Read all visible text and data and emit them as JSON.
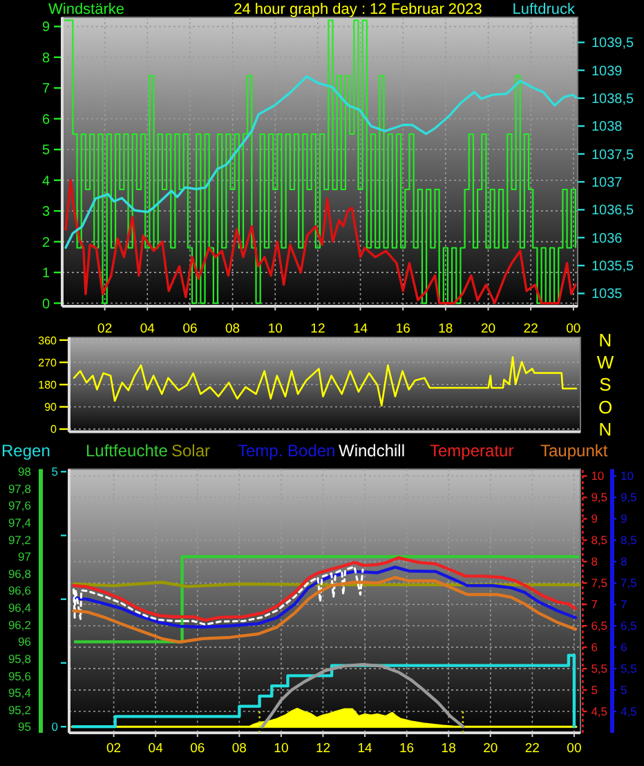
{
  "chart_data": [
    {
      "type": "line",
      "title": "24 hour graph day : 12 Februar 2023",
      "ylabel": "Windstärke",
      "y2label": "Luftdruck",
      "xlim": [
        "2023-02-12T00:00",
        "2023-02-13T00:12"
      ],
      "xticks": [
        {
          "value": "2023-02-12T02:00",
          "label": "02"
        },
        {
          "value": "2023-02-12T04:00",
          "label": "04"
        },
        {
          "value": "2023-02-12T06:00",
          "label": "06"
        },
        {
          "value": "2023-02-12T08:00",
          "label": "08"
        },
        {
          "value": "2023-02-12T10:00",
          "label": "10"
        },
        {
          "value": "2023-02-12T12:00",
          "label": "12"
        },
        {
          "value": "2023-02-12T14:00",
          "label": "14"
        },
        {
          "value": "2023-02-12T16:00",
          "label": "16"
        },
        {
          "value": "2023-02-12T18:00",
          "label": "18"
        },
        {
          "value": "2023-02-12T20:00",
          "label": "20"
        },
        {
          "value": "2023-02-12T22:00",
          "label": "22"
        },
        {
          "value": "2023-02-13T00:00",
          "label": "00"
        }
      ],
      "ylim": [
        -0.1,
        9.3
      ],
      "yticks": [
        0,
        1,
        2,
        3,
        4,
        5,
        6,
        7,
        8,
        9
      ],
      "y2lim": [
        1034.77,
        1039.95
      ],
      "y2ticks": [
        1035,
        {
          "value": 1035.5,
          "label": "1035,5"
        },
        1036,
        {
          "value": 1036.5,
          "label": "1036,5"
        },
        1037,
        {
          "value": 1037.5,
          "label": "1037,5"
        },
        1038,
        {
          "value": 1038.5,
          "label": "1038,5"
        },
        1039,
        {
          "value": 1039.5,
          "label": "1039,5"
        }
      ],
      "grid": true,
      "series": [
        {
          "type": "step",
          "color": "#22ee22",
          "x": [
            "2023-02-12T00:06",
            "2023-02-12T00:18",
            "2023-02-12T00:30",
            "2023-02-12T00:42",
            "2023-02-12T00:54",
            "2023-02-12T01:06",
            "2023-02-12T01:18",
            "2023-02-12T01:30",
            "2023-02-12T01:42",
            "2023-02-12T01:54",
            "2023-02-12T02:06",
            "2023-02-12T02:18",
            "2023-02-12T02:30",
            "2023-02-12T02:42",
            "2023-02-12T02:54",
            "2023-02-12T03:06",
            "2023-02-12T03:18",
            "2023-02-12T03:30",
            "2023-02-12T03:42",
            "2023-02-12T03:54",
            "2023-02-12T04:06",
            "2023-02-12T04:18",
            "2023-02-12T04:30",
            "2023-02-12T04:42",
            "2023-02-12T04:54",
            "2023-02-12T05:06",
            "2023-02-12T05:18",
            "2023-02-12T05:30",
            "2023-02-12T05:42",
            "2023-02-12T05:54",
            "2023-02-12T06:06",
            "2023-02-12T06:18",
            "2023-02-12T06:30",
            "2023-02-12T06:42",
            "2023-02-12T06:54",
            "2023-02-12T07:06",
            "2023-02-12T07:18",
            "2023-02-12T07:30",
            "2023-02-12T07:42",
            "2023-02-12T07:54",
            "2023-02-12T08:06",
            "2023-02-12T08:18",
            "2023-02-12T08:30",
            "2023-02-12T08:42",
            "2023-02-12T08:54",
            "2023-02-12T09:06",
            "2023-02-12T09:18",
            "2023-02-12T09:30",
            "2023-02-12T09:42",
            "2023-02-12T09:54",
            "2023-02-12T10:06",
            "2023-02-12T10:18",
            "2023-02-12T10:30",
            "2023-02-12T10:42",
            "2023-02-12T10:54",
            "2023-02-12T11:06",
            "2023-02-12T11:18",
            "2023-02-12T11:30",
            "2023-02-12T11:42",
            "2023-02-12T11:54",
            "2023-02-12T12:06",
            "2023-02-12T12:18",
            "2023-02-12T12:30",
            "2023-02-12T12:42",
            "2023-02-12T12:54",
            "2023-02-12T13:06",
            "2023-02-12T13:18",
            "2023-02-12T13:30",
            "2023-02-12T13:42",
            "2023-02-12T13:54",
            "2023-02-12T14:06",
            "2023-02-12T14:18",
            "2023-02-12T14:30",
            "2023-02-12T14:42",
            "2023-02-12T14:54",
            "2023-02-12T15:06",
            "2023-02-12T15:18",
            "2023-02-12T15:30",
            "2023-02-12T15:42",
            "2023-02-12T15:54",
            "2023-02-12T16:06",
            "2023-02-12T16:18",
            "2023-02-12T16:30",
            "2023-02-12T16:42",
            "2023-02-12T16:54",
            "2023-02-12T17:06",
            "2023-02-12T17:18",
            "2023-02-12T17:30",
            "2023-02-12T17:42",
            "2023-02-12T17:54",
            "2023-02-12T18:06",
            "2023-02-12T18:18",
            "2023-02-12T18:30",
            "2023-02-12T18:42",
            "2023-02-12T18:54",
            "2023-02-12T19:06",
            "2023-02-12T19:18",
            "2023-02-12T19:30",
            "2023-02-12T19:42",
            "2023-02-12T19:54",
            "2023-02-12T20:06",
            "2023-02-12T20:18",
            "2023-02-12T20:30",
            "2023-02-12T20:42",
            "2023-02-12T20:54",
            "2023-02-12T21:06",
            "2023-02-12T21:18",
            "2023-02-12T21:30",
            "2023-02-12T21:42",
            "2023-02-12T21:54",
            "2023-02-12T22:06",
            "2023-02-12T22:18",
            "2023-02-12T22:30",
            "2023-02-12T22:42",
            "2023-02-12T22:54",
            "2023-02-12T23:06",
            "2023-02-12T23:18",
            "2023-02-12T23:30",
            "2023-02-12T23:42",
            "2023-02-12T23:54",
            "2023-02-13T00:06"
          ],
          "values": [
            9.2,
            9.2,
            5.5,
            1.8,
            5.5,
            3.7,
            5.5,
            1.8,
            5.5,
            0,
            5.5,
            1.8,
            5.5,
            3.7,
            5.5,
            1.8,
            5.5,
            3.7,
            5.5,
            1.8,
            7.4,
            1.8,
            5.5,
            3.7,
            5.5,
            1.8,
            5.5,
            3.7,
            5.5,
            1.8,
            0,
            5.5,
            0,
            5.5,
            1.8,
            0,
            5.5,
            1.8,
            5.5,
            3.7,
            5.5,
            1.8,
            5.5,
            7.4,
            1.8,
            0,
            5.5,
            1.8,
            5.5,
            3.7,
            5.5,
            1.8,
            5.5,
            3.7,
            5.5,
            1.8,
            5.5,
            3.7,
            5.5,
            1.8,
            5.5,
            3.7,
            9.2,
            3.7,
            7.4,
            3.7,
            7.4,
            5.5,
            9.2,
            3.7,
            9.2,
            1.8,
            5.5,
            1.8,
            7.4,
            1.8,
            5.5,
            1.8,
            5.5,
            1.8,
            3.7,
            5.5,
            1.8,
            3.7,
            0,
            3.7,
            1.8,
            3.7,
            0,
            1.8,
            0,
            1.8,
            0,
            1.8,
            3.7,
            5.5,
            1.8,
            3.7,
            5.5,
            1.8,
            3.7,
            1.8,
            3.7,
            1.8,
            5.5,
            3.7,
            7.4,
            1.8,
            5.5,
            3.7,
            1.8,
            0,
            1.8,
            0,
            1.8,
            0,
            1.8,
            3.7,
            1.8,
            3.7,
            1.8
          ]
        },
        {
          "color": "#dd1111",
          "x": [
            "2023-02-12T00:10",
            "2023-02-12T00:24",
            "2023-02-12T00:30",
            "2023-02-12T00:48",
            "2023-02-12T01:00",
            "2023-02-12T01:06",
            "2023-02-12T01:18",
            "2023-02-12T01:36",
            "2023-02-12T01:54",
            "2023-02-12T02:18",
            "2023-02-12T02:36",
            "2023-02-12T02:54",
            "2023-02-12T03:18",
            "2023-02-12T03:36",
            "2023-02-12T03:48",
            "2023-02-12T04:18",
            "2023-02-12T04:42",
            "2023-02-12T05:00",
            "2023-02-12T05:30",
            "2023-02-12T05:48",
            "2023-02-12T06:06",
            "2023-02-12T06:24",
            "2023-02-12T06:54",
            "2023-02-12T07:12",
            "2023-02-12T07:30",
            "2023-02-12T07:48",
            "2023-02-12T08:12",
            "2023-02-12T08:30",
            "2023-02-12T08:54",
            "2023-02-12T09:12",
            "2023-02-12T09:30",
            "2023-02-12T09:48",
            "2023-02-12T10:06",
            "2023-02-12T10:24",
            "2023-02-12T10:42",
            "2023-02-12T11:12",
            "2023-02-12T11:30",
            "2023-02-12T11:54",
            "2023-02-12T12:12",
            "2023-02-12T12:27",
            "2023-02-12T12:42",
            "2023-02-12T13:00",
            "2023-02-12T13:12",
            "2023-02-12T13:24",
            "2023-02-12T13:36",
            "2023-02-12T14:00",
            "2023-02-12T14:12",
            "2023-02-12T14:42",
            "2023-02-12T15:12",
            "2023-02-12T15:42",
            "2023-02-12T16:00",
            "2023-02-12T16:18",
            "2023-02-12T16:42",
            "2023-02-12T17:06",
            "2023-02-12T17:30",
            "2023-02-12T17:42",
            "2023-02-12T18:24",
            "2023-02-12T18:48",
            "2023-02-12T19:12",
            "2023-02-12T19:30",
            "2023-02-12T19:54",
            "2023-02-12T20:18",
            "2023-02-12T20:48",
            "2023-02-12T21:06",
            "2023-02-12T21:30",
            "2023-02-12T21:48",
            "2023-02-12T22:12",
            "2023-02-12T22:30",
            "2023-02-12T23:18",
            "2023-02-12T23:42",
            "2023-02-12T23:54",
            "2023-02-13T00:06"
          ],
          "values": [
            2.4,
            4.0,
            3.3,
            2.1,
            1.8,
            0.3,
            1.9,
            1.8,
            0.3,
            0.9,
            2.1,
            1.5,
            2.8,
            0.9,
            2.2,
            1.7,
            2.0,
            0.4,
            1.2,
            0.2,
            1.5,
            0.8,
            1.8,
            1.5,
            1.7,
            0.9,
            2.4,
            1.5,
            2.5,
            1.2,
            1.5,
            0.9,
            2.0,
            0.6,
            1.9,
            1.0,
            2.2,
            2.5,
            1.9,
            3.4,
            2.0,
            2.7,
            2.5,
            3.0,
            3.1,
            1.5,
            1.8,
            1.5,
            1.7,
            1.3,
            0.4,
            1.3,
            0.1,
            0.4,
            0.9,
            0,
            0,
            0.3,
            0.9,
            0.1,
            0.6,
            0,
            0.9,
            1.3,
            1.7,
            0.4,
            0.6,
            0,
            0,
            1.3,
            0.3,
            0.6
          ]
        },
        {
          "axis": "y2",
          "color": "#33dddd",
          "x": [
            "2023-02-12T00:10",
            "2023-02-12T00:30",
            "2023-02-12T00:56",
            "2023-02-12T01:34",
            "2023-02-12T02:09",
            "2023-02-12T02:26",
            "2023-02-12T02:48",
            "2023-02-12T03:24",
            "2023-02-12T04:00",
            "2023-02-12T04:16",
            "2023-02-12T05:08",
            "2023-02-12T05:24",
            "2023-02-12T05:46",
            "2023-02-12T06:18",
            "2023-02-12T06:44",
            "2023-02-12T07:17",
            "2023-02-12T07:43",
            "2023-02-12T08:22",
            "2023-02-12T08:54",
            "2023-02-12T09:13",
            "2023-02-12T09:58",
            "2023-02-12T10:44",
            "2023-02-12T11:29",
            "2023-02-12T12:01",
            "2023-02-12T12:40",
            "2023-02-12T13:26",
            "2023-02-12T13:58",
            "2023-02-12T14:30",
            "2023-02-12T15:09",
            "2023-02-12T16:00",
            "2023-02-12T16:26",
            "2023-02-12T17:05",
            "2023-02-12T17:30",
            "2023-02-12T18:10",
            "2023-02-12T18:42",
            "2023-02-12T19:21",
            "2023-02-12T19:40",
            "2023-02-12T20:12",
            "2023-02-12T20:52",
            "2023-02-12T21:30",
            "2023-02-12T22:09",
            "2023-02-12T22:35",
            "2023-02-12T23:07",
            "2023-02-12T23:33",
            "2023-02-12T23:59",
            "2023-02-13T00:08"
          ],
          "values": [
            1035.82,
            1036.08,
            1036.2,
            1036.7,
            1036.78,
            1036.65,
            1036.71,
            1036.49,
            1036.46,
            1036.53,
            1036.84,
            1036.73,
            1036.9,
            1036.87,
            1036.9,
            1037.23,
            1037.31,
            1037.64,
            1037.91,
            1038.21,
            1038.37,
            1038.61,
            1038.89,
            1038.77,
            1038.7,
            1038.37,
            1038.29,
            1038.0,
            1037.91,
            1038.02,
            1038.02,
            1037.86,
            1037.96,
            1038.18,
            1038.41,
            1038.61,
            1038.49,
            1038.56,
            1038.58,
            1038.81,
            1038.68,
            1038.61,
            1038.37,
            1038.52,
            1038.56,
            1038.51
          ]
        }
      ]
    },
    {
      "type": "line",
      "xlim": [
        "2023-02-11T23:52",
        "2023-02-13T00:18"
      ],
      "ylim": [
        -11,
        371
      ],
      "yticks": [
        0,
        90,
        180,
        270,
        360
      ],
      "grid": "y",
      "tick_labels": "y",
      "annotations": [
        "N",
        "W",
        "S",
        "O",
        "N"
      ],
      "series": [
        {
          "color": "#ffff00",
          "x": [
            "2023-02-12T00:06",
            "2023-02-12T00:24",
            "2023-02-12T00:42",
            "2023-02-12T01:00",
            "2023-02-12T01:12",
            "2023-02-12T01:30",
            "2023-02-12T01:51",
            "2023-02-12T02:03",
            "2023-02-12T02:24",
            "2023-02-12T02:42",
            "2023-02-12T03:00",
            "2023-02-12T03:18",
            "2023-02-12T03:36",
            "2023-02-12T03:54",
            "2023-02-12T04:18",
            "2023-02-12T04:36",
            "2023-02-12T05:06",
            "2023-02-12T05:30",
            "2023-02-12T05:48",
            "2023-02-12T06:09",
            "2023-02-12T06:36",
            "2023-02-12T07:00",
            "2023-02-12T07:30",
            "2023-02-12T07:54",
            "2023-02-12T08:18",
            "2023-02-12T08:48",
            "2023-02-12T09:12",
            "2023-02-12T09:30",
            "2023-02-12T09:48",
            "2023-02-12T10:12",
            "2023-02-12T10:30",
            "2023-02-12T10:48",
            "2023-02-12T11:12",
            "2023-02-12T11:48",
            "2023-02-12T12:00",
            "2023-02-12T12:24",
            "2023-02-12T12:54",
            "2023-02-12T13:18",
            "2023-02-12T13:42",
            "2023-02-12T14:12",
            "2023-02-12T14:36",
            "2023-02-12T14:48",
            "2023-02-12T15:06",
            "2023-02-12T15:27",
            "2023-02-12T15:48",
            "2023-02-12T16:06",
            "2023-02-12T16:24",
            "2023-02-12T16:51",
            "2023-02-12T17:06",
            "2023-02-12T19:54",
            "2023-02-12T20:00",
            "2023-02-12T20:03",
            "2023-02-12T20:36",
            "2023-02-12T20:39",
            "2023-02-12T20:54",
            "2023-02-12T21:04",
            "2023-02-12T21:12",
            "2023-02-12T21:30",
            "2023-02-12T21:42",
            "2023-02-12T22:00",
            "2023-02-12T22:06",
            "2023-02-12T23:24",
            "2023-02-12T23:27",
            "2023-02-13T00:06"
          ],
          "values": [
            207,
            235,
            188,
            216,
            160,
            226,
            216,
            114,
            188,
            157,
            216,
            258,
            160,
            216,
            142,
            207,
            157,
            178,
            226,
            142,
            170,
            132,
            188,
            123,
            170,
            142,
            235,
            123,
            216,
            132,
            235,
            142,
            197,
            244,
            132,
            216,
            142,
            235,
            151,
            226,
            178,
            95,
            258,
            132,
            235,
            160,
            197,
            207,
            167,
            167,
            216,
            167,
            167,
            200,
            181,
            291,
            181,
            272,
            226,
            244,
            227,
            227,
            164,
            164
          ]
        }
      ]
    },
    {
      "type": "line",
      "legend": "top",
      "xlim": [
        "2023-02-11T23:52",
        "2023-02-13T00:18"
      ],
      "xticks": [
        {
          "value": "2023-02-12T02:00",
          "label": "02"
        },
        {
          "value": "2023-02-12T04:00",
          "label": "04"
        },
        {
          "value": "2023-02-12T06:00",
          "label": "06"
        },
        {
          "value": "2023-02-12T08:00",
          "label": "08"
        },
        {
          "value": "2023-02-12T10:00",
          "label": "10"
        },
        {
          "value": "2023-02-12T12:00",
          "label": "12"
        },
        {
          "value": "2023-02-12T14:00",
          "label": "14"
        },
        {
          "value": "2023-02-12T16:00",
          "label": "16"
        },
        {
          "value": "2023-02-12T18:00",
          "label": "18"
        },
        {
          "value": "2023-02-12T20:00",
          "label": "20"
        },
        {
          "value": "2023-02-12T22:00",
          "label": "22"
        },
        {
          "value": "2023-02-13T00:00",
          "label": "00"
        }
      ],
      "ylim": [
        4.0,
        10.16
      ],
      "yticks": [
        {
          "value": 4.5,
          "label": "4,5"
        },
        {
          "value": 5,
          "label": "5"
        },
        {
          "value": 5.5,
          "label": "5,5"
        },
        {
          "value": 6,
          "label": "6"
        },
        {
          "value": 6.5,
          "label": "6,5"
        },
        {
          "value": 7,
          "label": "7"
        },
        {
          "value": 7.5,
          "label": "7,5"
        },
        {
          "value": 8,
          "label": "8"
        },
        {
          "value": 8.5,
          "label": "8,5"
        },
        {
          "value": 9,
          "label": "9"
        },
        {
          "value": 9.5,
          "label": "9,5"
        },
        {
          "value": 10,
          "label": "10"
        }
      ],
      "y2lim": [
        94.93,
        98.03
      ],
      "y2ticks": [
        95,
        {
          "value": 95.2,
          "label": "95,2"
        },
        {
          "value": 95.4,
          "label": "95,4"
        },
        {
          "value": 95.6,
          "label": "95,6"
        },
        {
          "value": 95.8,
          "label": "95,8"
        },
        96,
        {
          "value": 96.2,
          "label": "96,2"
        },
        {
          "value": 96.4,
          "label": "96,4"
        },
        {
          "value": 96.6,
          "label": "96,6"
        },
        {
          "value": 96.8,
          "label": "96,8"
        },
        97,
        {
          "value": 97.2,
          "label": "97,2"
        },
        {
          "value": 97.4,
          "label": "97,4"
        },
        {
          "value": 97.6,
          "label": "97,6"
        },
        {
          "value": 97.8,
          "label": "97,8"
        },
        98
      ],
      "y3lim": [
        -0.12,
        5.05
      ],
      "y3ticks": [
        0,
        {
          "value": 1.25,
          "label": null
        },
        {
          "value": 2.5,
          "label": null
        },
        {
          "value": 3.75,
          "label": null
        },
        5
      ],
      "grid": true,
      "ref_lines": [
        {
          "axis": "x",
          "value": "2023-02-12T08:58",
          "color": "#cccc22",
          "line_style": "dotted"
        },
        {
          "axis": "x",
          "value": "2023-02-12T18:41",
          "color": "#cccc22",
          "line_style": "dotted"
        }
      ],
      "series": [
        {
          "name": "Regen",
          "type": "step",
          "axis": "y3",
          "color": "#22dddd",
          "x": [
            "2023-02-12T00:00",
            "2023-02-12T02:04",
            "2023-02-12T08:00",
            "2023-02-12T08:58",
            "2023-02-12T09:33",
            "2023-02-12T10:19",
            "2023-02-12T12:25",
            "2023-02-12T23:44",
            "2023-02-13T00:00",
            "2023-02-13T00:03"
          ],
          "values": [
            0,
            0.2,
            0.4,
            0.6,
            0.8,
            1.0,
            1.2,
            1.4,
            0,
            0
          ]
        },
        {
          "name": "Luftfeuchte",
          "type": "step",
          "axis": "y2",
          "color": "#33cc33",
          "x": [
            "2023-02-12T00:06",
            "2023-02-12T05:16",
            "2023-02-13T00:15"
          ],
          "values": [
            96,
            97,
            97
          ]
        },
        {
          "name": "Solar",
          "axis": "y2",
          "color": "#999900",
          "x": [
            "2023-02-12T00:06",
            "2023-02-12T02:00",
            "2023-02-12T04:18",
            "2023-02-12T05:30",
            "2023-02-12T08:00",
            "2023-02-12T12:00",
            "2023-02-12T18:00",
            "2023-02-13T00:15"
          ],
          "values": [
            96.68,
            96.66,
            96.7,
            96.65,
            96.68,
            96.67,
            96.67,
            96.67
          ]
        },
        {
          "name": "Temp. Boden",
          "color": "#1414e0",
          "x": [
            "2023-02-12T00:05",
            "2023-02-12T00:45",
            "2023-02-12T01:36",
            "2023-02-12T02:24",
            "2023-02-12T03:10",
            "2023-02-12T04:10",
            "2023-02-12T05:09",
            "2023-02-12T06:15",
            "2023-02-12T07:34",
            "2023-02-12T08:54",
            "2023-02-12T09:48",
            "2023-02-12T10:39",
            "2023-02-12T11:18",
            "2023-02-12T11:45",
            "2023-02-12T12:24",
            "2023-02-12T13:30",
            "2023-02-12T14:36",
            "2023-02-12T15:27",
            "2023-02-12T16:06",
            "2023-02-12T17:22",
            "2023-02-12T18:08",
            "2023-02-12T18:54",
            "2023-02-12T20:06",
            "2023-02-12T20:59",
            "2023-02-12T21:38",
            "2023-02-12T22:18",
            "2023-02-12T23:12",
            "2023-02-13T00:04"
          ],
          "values": [
            7.15,
            7.12,
            7.01,
            6.9,
            6.74,
            6.58,
            6.49,
            6.47,
            6.5,
            6.55,
            6.69,
            7.01,
            7.39,
            7.52,
            7.66,
            7.77,
            7.74,
            7.87,
            7.78,
            7.77,
            7.61,
            7.44,
            7.44,
            7.39,
            7.28,
            7.06,
            6.85,
            6.69
          ]
        },
        {
          "name": "Windchill",
          "color": "#ffffff",
          "line_style": "dashed",
          "x": [
            "2023-02-12T00:05",
            "2023-02-12T00:08",
            "2023-02-12T00:10",
            "2023-02-12T00:25",
            "2023-02-12T00:27",
            "2023-02-12T00:45",
            "2023-02-12T01:36",
            "2023-02-12T02:24",
            "2023-02-12T02:57",
            "2023-02-12T03:36",
            "2023-02-12T04:10",
            "2023-02-12T04:56",
            "2023-02-12T05:48",
            "2023-02-12T06:22",
            "2023-02-12T07:06",
            "2023-02-12T08:12",
            "2023-02-12T09:06",
            "2023-02-12T09:48",
            "2023-02-12T10:39",
            "2023-02-12T11:18",
            "2023-02-12T11:45",
            "2023-02-12T11:52",
            "2023-02-12T11:57",
            "2023-02-12T12:24",
            "2023-02-12T12:30",
            "2023-02-12T12:36",
            "2023-02-12T12:54",
            "2023-02-12T12:58",
            "2023-02-12T13:04",
            "2023-02-12T13:30",
            "2023-02-12T13:47",
            "2023-02-12T13:54"
          ],
          "values": [
            7.35,
            6.69,
            7.35,
            6.66,
            7.33,
            7.31,
            7.18,
            7.02,
            6.86,
            6.72,
            6.64,
            6.61,
            6.61,
            6.53,
            6.6,
            6.61,
            6.7,
            6.86,
            7.18,
            7.51,
            7.63,
            7.06,
            7.65,
            7.72,
            7.17,
            7.74,
            7.8,
            7.23,
            7.81,
            7.88,
            7.23,
            7.81
          ]
        },
        {
          "name": "Temperatur",
          "color": "#ee2222",
          "x": [
            "2023-02-12T00:05",
            "2023-02-12T00:45",
            "2023-02-12T01:36",
            "2023-02-12T02:24",
            "2023-02-12T02:57",
            "2023-02-12T03:36",
            "2023-02-12T04:10",
            "2023-02-12T04:56",
            "2023-02-12T05:48",
            "2023-02-12T06:22",
            "2023-02-12T07:06",
            "2023-02-12T08:12",
            "2023-02-12T09:06",
            "2023-02-12T09:48",
            "2023-02-12T10:39",
            "2023-02-12T11:18",
            "2023-02-12T11:45",
            "2023-02-12T12:24",
            "2023-02-12T13:04",
            "2023-02-12T13:30",
            "2023-02-12T13:57",
            "2023-02-12T14:36",
            "2023-02-12T15:03",
            "2023-02-12T15:36",
            "2023-02-12T16:02",
            "2023-02-12T16:36",
            "2023-02-12T17:22",
            "2023-02-12T18:08",
            "2023-02-12T18:48",
            "2023-02-12T19:40",
            "2023-02-12T20:33",
            "2023-02-12T21:12",
            "2023-02-12T21:52",
            "2023-02-12T22:30",
            "2023-02-12T23:12",
            "2023-02-12T23:44",
            "2023-02-13T00:04"
          ],
          "values": [
            7.44,
            7.41,
            7.28,
            7.12,
            6.96,
            6.82,
            6.74,
            6.71,
            6.71,
            6.63,
            6.7,
            6.71,
            6.8,
            6.96,
            7.28,
            7.61,
            7.73,
            7.82,
            7.91,
            7.98,
            7.91,
            7.93,
            7.98,
            8.09,
            8.04,
            7.98,
            7.95,
            7.8,
            7.66,
            7.66,
            7.63,
            7.55,
            7.39,
            7.2,
            7.06,
            7.01,
            6.9
          ]
        },
        {
          "name": "Taupunkt",
          "color": "#dd7722",
          "x": [
            "2023-02-12T00:05",
            "2023-02-12T00:45",
            "2023-02-12T01:36",
            "2023-02-12T02:30",
            "2023-02-12T03:24",
            "2023-02-12T04:18",
            "2023-02-12T05:09",
            "2023-02-12T06:15",
            "2023-02-12T07:34",
            "2023-02-12T08:54",
            "2023-02-12T09:48",
            "2023-02-12T10:39",
            "2023-02-12T11:18",
            "2023-02-12T11:45",
            "2023-02-12T12:24",
            "2023-02-12T13:30",
            "2023-02-12T14:36",
            "2023-02-12T15:27",
            "2023-02-12T16:06",
            "2023-02-12T17:22",
            "2023-02-12T18:08",
            "2023-02-12T18:54",
            "2023-02-12T20:18",
            "2023-02-12T20:59",
            "2023-02-12T21:38",
            "2023-02-12T22:18",
            "2023-02-12T23:12",
            "2023-02-13T00:04"
          ],
          "values": [
            6.85,
            6.82,
            6.69,
            6.52,
            6.36,
            6.2,
            6.12,
            6.2,
            6.23,
            6.31,
            6.47,
            6.8,
            7.12,
            7.28,
            7.44,
            7.52,
            7.5,
            7.63,
            7.55,
            7.55,
            7.39,
            7.23,
            7.23,
            7.17,
            7.01,
            6.8,
            6.58,
            6.42
          ]
        },
        {
          "type": "area",
          "axis": "y3",
          "color": "#ffff00",
          "x": [
            "2023-02-12T00:00",
            "2023-02-12T08:30",
            "2023-02-12T08:42",
            "2023-02-12T09:00",
            "2023-02-12T09:24",
            "2023-02-12T09:48",
            "2023-02-12T10:12",
            "2023-02-12T10:30",
            "2023-02-12T10:46",
            "2023-02-12T11:06",
            "2023-02-12T11:24",
            "2023-02-12T11:42",
            "2023-02-12T12:00",
            "2023-02-12T12:18",
            "2023-02-12T12:36",
            "2023-02-12T13:00",
            "2023-02-12T13:24",
            "2023-02-12T13:42",
            "2023-02-12T14:00",
            "2023-02-12T14:18",
            "2023-02-12T14:36",
            "2023-02-12T15:00",
            "2023-02-12T15:18",
            "2023-02-12T15:30",
            "2023-02-12T15:42",
            "2023-02-12T16:12",
            "2023-02-12T16:48",
            "2023-02-12T17:42",
            "2023-02-12T18:18",
            "2023-02-13T00:06"
          ],
          "values": [
            0,
            0,
            0.04,
            0.08,
            0.1,
            0.15,
            0.22,
            0.3,
            0.35,
            0.29,
            0.25,
            0.17,
            0.22,
            0.25,
            0.29,
            0.34,
            0.34,
            0.2,
            0.24,
            0.22,
            0.24,
            0.2,
            0.27,
            0.2,
            0.15,
            0.1,
            0.06,
            0.02,
            0,
            0
          ]
        },
        {
          "axis": "y3",
          "color": "#9a9a9a",
          "x": [
            "2023-02-12T09:06",
            "2023-02-12T09:30",
            "2023-02-12T10:00",
            "2023-02-12T10:30",
            "2023-02-12T11:06",
            "2023-02-12T12:06",
            "2023-02-12T13:00",
            "2023-02-12T13:54",
            "2023-02-12T14:48",
            "2023-02-12T15:36",
            "2023-02-12T16:12",
            "2023-02-12T16:48",
            "2023-02-12T17:30",
            "2023-02-12T18:06",
            "2023-02-12T18:42"
          ],
          "values": [
            0,
            0.22,
            0.52,
            0.72,
            0.88,
            1.1,
            1.19,
            1.22,
            1.19,
            1.07,
            0.92,
            0.72,
            0.47,
            0.2,
            0
          ]
        }
      ]
    }
  ]
}
